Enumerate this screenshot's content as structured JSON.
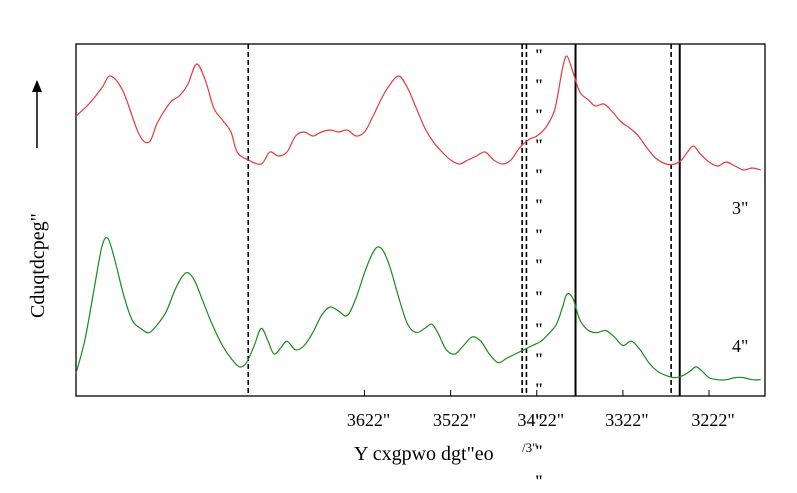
{
  "chart_data": {
    "type": "line",
    "title": "",
    "xlabel": "Y cxgpwo dgt\"eo",
    "xlabel_superscript": "/3\"",
    "ylabel": "Cduqtdcpeg\"",
    "x_reversed": true,
    "xlim": [
      3935,
      3135
    ],
    "x_ticks": [
      {
        "value": 3600,
        "label": "3622\""
      },
      {
        "value": 3500,
        "label": "3522\""
      },
      {
        "value": 3400,
        "label": "34'22\""
      },
      {
        "value": 3300,
        "label": "3322\""
      },
      {
        "value": 3200,
        "label": "3222\""
      }
    ],
    "y_axis_arrow": true,
    "series": [
      {
        "name": "3\"",
        "color": "#e8383c",
        "points": [
          [
            3935,
            0.68
          ],
          [
            3920,
            0.74
          ],
          [
            3905,
            0.82
          ],
          [
            3895,
            0.88
          ],
          [
            3880,
            0.8
          ],
          [
            3862,
            0.59
          ],
          [
            3850,
            0.55
          ],
          [
            3840,
            0.65
          ],
          [
            3825,
            0.75
          ],
          [
            3815,
            0.78
          ],
          [
            3805,
            0.84
          ],
          [
            3795,
            0.94
          ],
          [
            3785,
            0.86
          ],
          [
            3775,
            0.72
          ],
          [
            3765,
            0.66
          ],
          [
            3755,
            0.6
          ],
          [
            3748,
            0.5
          ],
          [
            3735,
            0.46
          ],
          [
            3720,
            0.44
          ],
          [
            3710,
            0.5
          ],
          [
            3700,
            0.48
          ],
          [
            3690,
            0.5
          ],
          [
            3680,
            0.58
          ],
          [
            3670,
            0.6
          ],
          [
            3660,
            0.58
          ],
          [
            3650,
            0.6
          ],
          [
            3640,
            0.61
          ],
          [
            3630,
            0.6
          ],
          [
            3620,
            0.61
          ],
          [
            3610,
            0.58
          ],
          [
            3600,
            0.6
          ],
          [
            3590,
            0.68
          ],
          [
            3580,
            0.77
          ],
          [
            3570,
            0.84
          ],
          [
            3560,
            0.88
          ],
          [
            3550,
            0.82
          ],
          [
            3540,
            0.72
          ],
          [
            3530,
            0.62
          ],
          [
            3520,
            0.55
          ],
          [
            3510,
            0.5
          ],
          [
            3500,
            0.46
          ],
          [
            3490,
            0.44
          ],
          [
            3480,
            0.46
          ],
          [
            3470,
            0.48
          ],
          [
            3460,
            0.5
          ],
          [
            3450,
            0.46
          ],
          [
            3440,
            0.44
          ],
          [
            3430,
            0.46
          ],
          [
            3420,
            0.52
          ],
          [
            3410,
            0.56
          ],
          [
            3400,
            0.58
          ],
          [
            3390,
            0.62
          ],
          [
            3380,
            0.7
          ],
          [
            3375,
            0.8
          ],
          [
            3370,
            0.92
          ],
          [
            3365,
            0.98
          ],
          [
            3358,
            0.9
          ],
          [
            3350,
            0.8
          ],
          [
            3340,
            0.76
          ],
          [
            3332,
            0.73
          ],
          [
            3322,
            0.74
          ],
          [
            3312,
            0.7
          ],
          [
            3302,
            0.65
          ],
          [
            3292,
            0.62
          ],
          [
            3282,
            0.58
          ],
          [
            3272,
            0.52
          ],
          [
            3262,
            0.47
          ],
          [
            3250,
            0.44
          ],
          [
            3240,
            0.44
          ],
          [
            3232,
            0.46
          ],
          [
            3225,
            0.5
          ],
          [
            3218,
            0.53
          ],
          [
            3210,
            0.49
          ],
          [
            3200,
            0.45
          ],
          [
            3190,
            0.43
          ],
          [
            3180,
            0.45
          ],
          [
            3170,
            0.43
          ],
          [
            3160,
            0.41
          ],
          [
            3150,
            0.42
          ],
          [
            3140,
            0.41
          ]
        ]
      },
      {
        "name": "4\"",
        "color": "#1a8a1a",
        "points": [
          [
            3935,
            0.05
          ],
          [
            3925,
            0.2
          ],
          [
            3915,
            0.42
          ],
          [
            3905,
            0.64
          ],
          [
            3898,
            0.68
          ],
          [
            3890,
            0.58
          ],
          [
            3880,
            0.42
          ],
          [
            3870,
            0.3
          ],
          [
            3860,
            0.26
          ],
          [
            3850,
            0.24
          ],
          [
            3840,
            0.28
          ],
          [
            3830,
            0.34
          ],
          [
            3820,
            0.44
          ],
          [
            3812,
            0.5
          ],
          [
            3805,
            0.52
          ],
          [
            3797,
            0.48
          ],
          [
            3787,
            0.38
          ],
          [
            3777,
            0.28
          ],
          [
            3765,
            0.18
          ],
          [
            3755,
            0.12
          ],
          [
            3745,
            0.08
          ],
          [
            3737,
            0.1
          ],
          [
            3728,
            0.18
          ],
          [
            3720,
            0.26
          ],
          [
            3712,
            0.2
          ],
          [
            3705,
            0.14
          ],
          [
            3697,
            0.17
          ],
          [
            3690,
            0.2
          ],
          [
            3680,
            0.16
          ],
          [
            3670,
            0.18
          ],
          [
            3660,
            0.24
          ],
          [
            3650,
            0.32
          ],
          [
            3640,
            0.36
          ],
          [
            3630,
            0.34
          ],
          [
            3620,
            0.32
          ],
          [
            3610,
            0.4
          ],
          [
            3600,
            0.52
          ],
          [
            3592,
            0.6
          ],
          [
            3585,
            0.64
          ],
          [
            3578,
            0.62
          ],
          [
            3570,
            0.54
          ],
          [
            3560,
            0.4
          ],
          [
            3550,
            0.28
          ],
          [
            3540,
            0.24
          ],
          [
            3530,
            0.26
          ],
          [
            3522,
            0.28
          ],
          [
            3515,
            0.24
          ],
          [
            3505,
            0.16
          ],
          [
            3495,
            0.14
          ],
          [
            3485,
            0.18
          ],
          [
            3475,
            0.22
          ],
          [
            3465,
            0.2
          ],
          [
            3455,
            0.14
          ],
          [
            3445,
            0.1
          ],
          [
            3435,
            0.12
          ],
          [
            3425,
            0.14
          ],
          [
            3415,
            0.16
          ],
          [
            3405,
            0.18
          ],
          [
            3395,
            0.2
          ],
          [
            3385,
            0.24
          ],
          [
            3377,
            0.28
          ],
          [
            3370,
            0.36
          ],
          [
            3365,
            0.42
          ],
          [
            3358,
            0.4
          ],
          [
            3350,
            0.3
          ],
          [
            3340,
            0.25
          ],
          [
            3330,
            0.24
          ],
          [
            3320,
            0.25
          ],
          [
            3310,
            0.22
          ],
          [
            3300,
            0.18
          ],
          [
            3290,
            0.2
          ],
          [
            3280,
            0.16
          ],
          [
            3270,
            0.1
          ],
          [
            3260,
            0.06
          ],
          [
            3250,
            0.04
          ],
          [
            3240,
            0.03
          ],
          [
            3230,
            0.04
          ],
          [
            3222,
            0.06
          ],
          [
            3215,
            0.08
          ],
          [
            3208,
            0.06
          ],
          [
            3200,
            0.03
          ],
          [
            3190,
            0.02
          ],
          [
            3180,
            0.02
          ],
          [
            3170,
            0.03
          ],
          [
            3160,
            0.03
          ],
          [
            3150,
            0.02
          ],
          [
            3140,
            0.02
          ]
        ]
      }
    ],
    "reference_lines": [
      {
        "x": 3735,
        "style": "dashed"
      },
      {
        "x": 3417,
        "style": "dashed"
      },
      {
        "x": 3412,
        "style": "dashed"
      },
      {
        "x": 3355,
        "style": "solid"
      },
      {
        "x": 3244,
        "style": "dashed"
      },
      {
        "x": 3234,
        "style": "solid"
      }
    ],
    "stray_marks": [
      {
        "text": "\"",
        "x": 3405
      },
      {
        "text": "\"",
        "x": 3400
      }
    ]
  }
}
